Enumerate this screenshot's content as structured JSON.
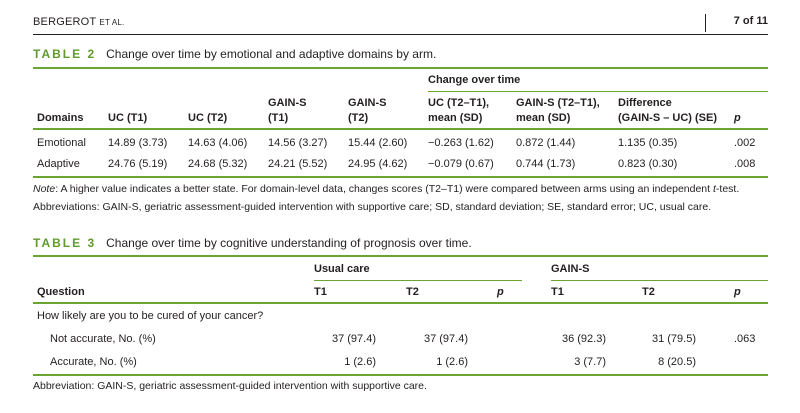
{
  "header": {
    "authors": "BERGEROT",
    "etal": "ET AL.",
    "page": "7 of 11"
  },
  "table2": {
    "label": "TABLE 2",
    "title": "Change over time by emotional and adaptive domains by arm.",
    "spanner": "Change over time",
    "columns": [
      [
        "Domains"
      ],
      [
        "UC (T1)"
      ],
      [
        "UC (T2)"
      ],
      [
        "GAIN-S",
        "(T1)"
      ],
      [
        "GAIN-S",
        "(T2)"
      ],
      [
        "UC (T2–T1),",
        "mean (SD)"
      ],
      [
        "GAIN-S (T2–T1),",
        "mean (SD)"
      ],
      [
        "Difference",
        "(GAIN-S – UC) (SE)"
      ],
      [
        "p"
      ]
    ],
    "rows": [
      [
        "Emotional",
        "14.89 (3.73)",
        "14.63 (4.06)",
        "14.56 (3.27)",
        "15.44 (2.60)",
        "−0.263 (1.62)",
        "0.872 (1.44)",
        "1.135 (0.35)",
        ".002"
      ],
      [
        "Adaptive",
        "24.76 (5.19)",
        "24.68 (5.32)",
        "24.21 (5.52)",
        "24.95 (4.62)",
        "−0.079 (0.67)",
        "0.744 (1.73)",
        "0.823 (0.30)",
        ".008"
      ]
    ],
    "note_label": "Note",
    "note_text_1": ": A higher value indicates a better state. For domain-level data, changes scores (T2–T1) were compared between arms using an independent ",
    "note_t": "t",
    "note_text_2": "-test.",
    "abbreviations": "Abbreviations: GAIN-S, geriatric assessment-guided intervention with supportive care; SD, standard deviation; SE, standard error; UC, usual care."
  },
  "table3": {
    "label": "TABLE 3",
    "title": "Change over time by cognitive understanding of prognosis over time.",
    "group_usual": "Usual care",
    "group_gain": "GAIN-S",
    "columns": [
      "Question",
      "T1",
      "T2",
      "p",
      "T1",
      "T2",
      "p"
    ],
    "question": "How likely are you to be cured of your cancer?",
    "rows": [
      [
        "Not accurate, No. (%)",
        "37 (97.4)",
        "37 (97.4)",
        "",
        "36 (92.3)",
        "31 (79.5)",
        ".063"
      ],
      [
        "Accurate, No. (%)",
        "1 (2.6)",
        "1 (2.6)",
        "",
        "3 (7.7)",
        "8 (20.5)",
        ""
      ]
    ],
    "abbreviations": "Abbreviation: GAIN-S, geriatric assessment-guided intervention with supportive care."
  }
}
